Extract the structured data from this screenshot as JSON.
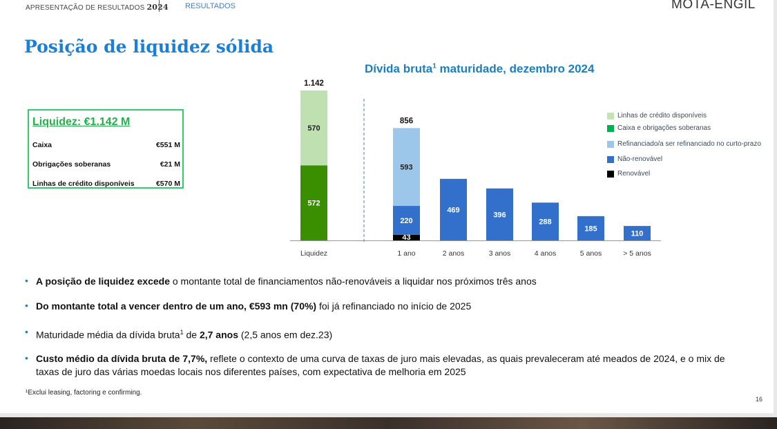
{
  "header": {
    "left_label": "APRESENTAÇÃO DE RESULTADOS",
    "year": "2024",
    "tab": "RESULTADOS",
    "logo": "MOTA-ENGIL"
  },
  "title": "Posição de liquidez sólida",
  "liquidity_box": {
    "title": "Liquidez: €1.142 M",
    "rows": [
      {
        "label": "Caixa",
        "value": "€551 M"
      },
      {
        "label": "Obrigações soberanas",
        "value": "€21 M"
      },
      {
        "label": "Linhas de crédito disponíveis",
        "value": "€570 M"
      }
    ]
  },
  "chart_data": {
    "type": "bar",
    "title": "Dívida bruta",
    "title_sup": "1",
    "title_rest": " maturidade, dezembro 2024",
    "categories": [
      "Liquidez",
      "1 ano",
      "2 anos",
      "3 anos",
      "4 anos",
      "5 anos",
      "> 5 anos"
    ],
    "series": [
      {
        "name": "Caixa e obrigações soberanas",
        "color": "#3a8f00",
        "values": [
          572,
          0,
          0,
          0,
          0,
          0,
          0
        ]
      },
      {
        "name": "Linhas de crédito disponíveis",
        "color": "#bfe0b0",
        "values": [
          570,
          0,
          0,
          0,
          0,
          0,
          0
        ]
      },
      {
        "name": "Renovável",
        "color": "#000000",
        "values": [
          0,
          43,
          0,
          0,
          0,
          0,
          0
        ]
      },
      {
        "name": "Não-renovável",
        "color": "#3370cc",
        "values": [
          0,
          220,
          469,
          396,
          288,
          185,
          110
        ]
      },
      {
        "name": "Refinanciado/a ser refinanciado no curto-prazo",
        "color": "#9cc7ea",
        "values": [
          0,
          593,
          0,
          0,
          0,
          0,
          0
        ]
      }
    ],
    "totals": [
      "1.142",
      "856"
    ],
    "legend": [
      {
        "label": "Linhas de crédito disponíveis",
        "color": "#c3e3b3"
      },
      {
        "label": "Caixa e obrigações soberanas",
        "color": "#00b050"
      },
      {
        "label": "Refinanciado/a ser refinanciado no curto-prazo",
        "color": "#9cc7ea"
      },
      {
        "label": "Não-renovável",
        "color": "#3370cc"
      },
      {
        "label": "Renovável",
        "color": "#000000"
      }
    ],
    "legend_position": "right"
  },
  "bullets": [
    {
      "bold": "A posição de liquidez excede",
      "rest": " o montante total de financiamentos não-renováveis a liquidar nos próximos três anos"
    },
    {
      "bold": "Do montante total a vencer dentro de um ano, €593 mn (70%)",
      "rest": " foi já refinanciado no início de 2025"
    },
    {
      "pre": "Maturidade média da dívida bruta",
      "sup": "1",
      "mid": " de ",
      "bold": "2,7 anos",
      "rest": " (2,5 anos em dez.23)"
    },
    {
      "bold": "Custo médio da dívida bruta de 7,7%,",
      "rest": " reflete o contexto de uma curva de taxas de juro mais elevadas, as quais prevaleceram até meados de 2024, e o mix de taxas de juro das várias moedas locais nos diferentes países, com expectativa de melhoria em 2025"
    }
  ],
  "footnote": "¹Exclui leasing, factoring e confirming.",
  "page_number": "16"
}
